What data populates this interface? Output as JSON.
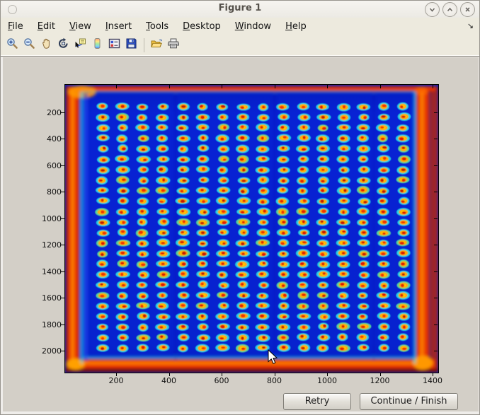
{
  "window": {
    "title": "Figure 1"
  },
  "menubar": {
    "items": [
      {
        "label": "File",
        "mnemonic": "F"
      },
      {
        "label": "Edit",
        "mnemonic": "E"
      },
      {
        "label": "View",
        "mnemonic": "V"
      },
      {
        "label": "Insert",
        "mnemonic": "I"
      },
      {
        "label": "Tools",
        "mnemonic": "T"
      },
      {
        "label": "Desktop",
        "mnemonic": "D"
      },
      {
        "label": "Window",
        "mnemonic": "W"
      },
      {
        "label": "Help",
        "mnemonic": "H"
      }
    ],
    "overflow_glyph": "↘"
  },
  "toolbar": {
    "buttons": [
      {
        "name": "zoom-in-icon"
      },
      {
        "name": "zoom-out-icon"
      },
      {
        "name": "pan-icon"
      },
      {
        "name": "rotate-3d-icon"
      },
      {
        "name": "data-cursor-icon"
      },
      {
        "name": "insert-colorbar-icon"
      },
      {
        "name": "insert-legend-icon"
      },
      {
        "name": "save-icon"
      },
      {
        "name": "separator"
      },
      {
        "name": "open-folder-icon"
      },
      {
        "name": "print-icon"
      }
    ]
  },
  "plot": {
    "x_ticks": [
      200,
      400,
      600,
      800,
      1000,
      1200,
      1400
    ],
    "y_ticks": [
      200,
      400,
      600,
      800,
      1000,
      1200,
      1400,
      1600,
      1800,
      2000
    ],
    "image": {
      "background_blue": "#0822d4",
      "border_red": "#e63000",
      "border_orange": "#ff8800",
      "halo_cyan": "#29dfe2",
      "halo_green": "#5fe394",
      "ring_yellow": "#ffd800",
      "ring_orange": "#ff9000",
      "core_red": "#dc1400",
      "rows": 24,
      "cols": 16,
      "seed": 1337
    }
  },
  "chart_data": {
    "type": "heatmap",
    "title": "",
    "xlabel": "",
    "ylabel": "",
    "x_ticks": [
      200,
      400,
      600,
      800,
      1000,
      1200,
      1400
    ],
    "y_ticks": [
      200,
      400,
      600,
      800,
      1000,
      1200,
      1400,
      1600,
      1800,
      2000
    ],
    "x_range": [
      1,
      1420
    ],
    "y_range": [
      1,
      2160
    ],
    "colormap": "jet",
    "grid_on": false,
    "legend": "none",
    "description": "Microarray plate scan rendered with jet colormap: dark blue field, red-orange plate border with orange corner blobs and cyan fringe, and a regular grid of sample spots (cyan halo, yellow-orange ring, red core)",
    "spot_grid": {
      "cols": 16,
      "rows": 24,
      "first_center_data": [
        150,
        160
      ],
      "pitch_data": [
        76,
        74
      ]
    }
  },
  "action_buttons": {
    "retry": "Retry",
    "continue_finish": "Continue / Finish"
  }
}
